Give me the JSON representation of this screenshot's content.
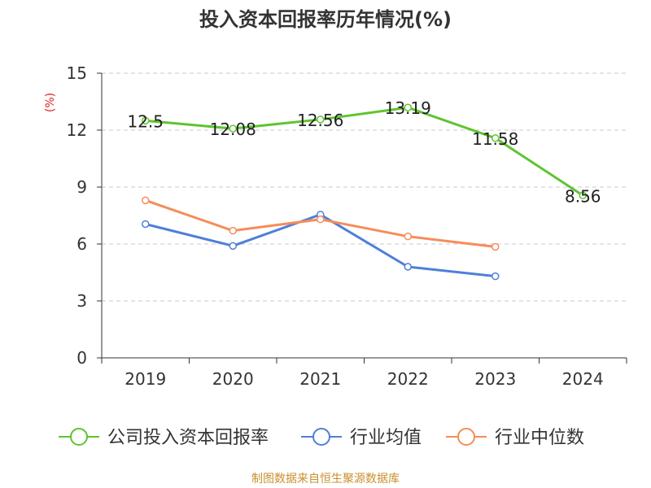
{
  "chart_data": {
    "type": "line",
    "title": "投入资本回报率历年情况(%)",
    "ylabel": "(%)",
    "xlabel": "",
    "categories": [
      "2019",
      "2020",
      "2021",
      "2022",
      "2023",
      "2024"
    ],
    "ylim": [
      0,
      15
    ],
    "yticks": [
      0,
      3,
      6,
      9,
      12,
      15
    ],
    "grid": true,
    "legend_position": "bottom",
    "series": [
      {
        "name": "公司投入资本回报率",
        "color": "#5ec42f",
        "values": [
          12.5,
          12.08,
          12.56,
          13.19,
          11.58,
          8.56
        ],
        "labels": [
          "12.5",
          "12.08",
          "12.56",
          "13.19",
          "11.58",
          "8.56"
        ],
        "show_labels": true
      },
      {
        "name": "行业均值",
        "color": "#4e7fd9",
        "values": [
          7.05,
          5.9,
          7.55,
          4.8,
          4.3,
          null
        ],
        "show_labels": false
      },
      {
        "name": "行业中位数",
        "color": "#f58d5a",
        "values": [
          8.3,
          6.7,
          7.3,
          6.4,
          5.85,
          null
        ],
        "show_labels": false
      }
    ]
  },
  "source": "制图数据来自恒生聚源数据库"
}
